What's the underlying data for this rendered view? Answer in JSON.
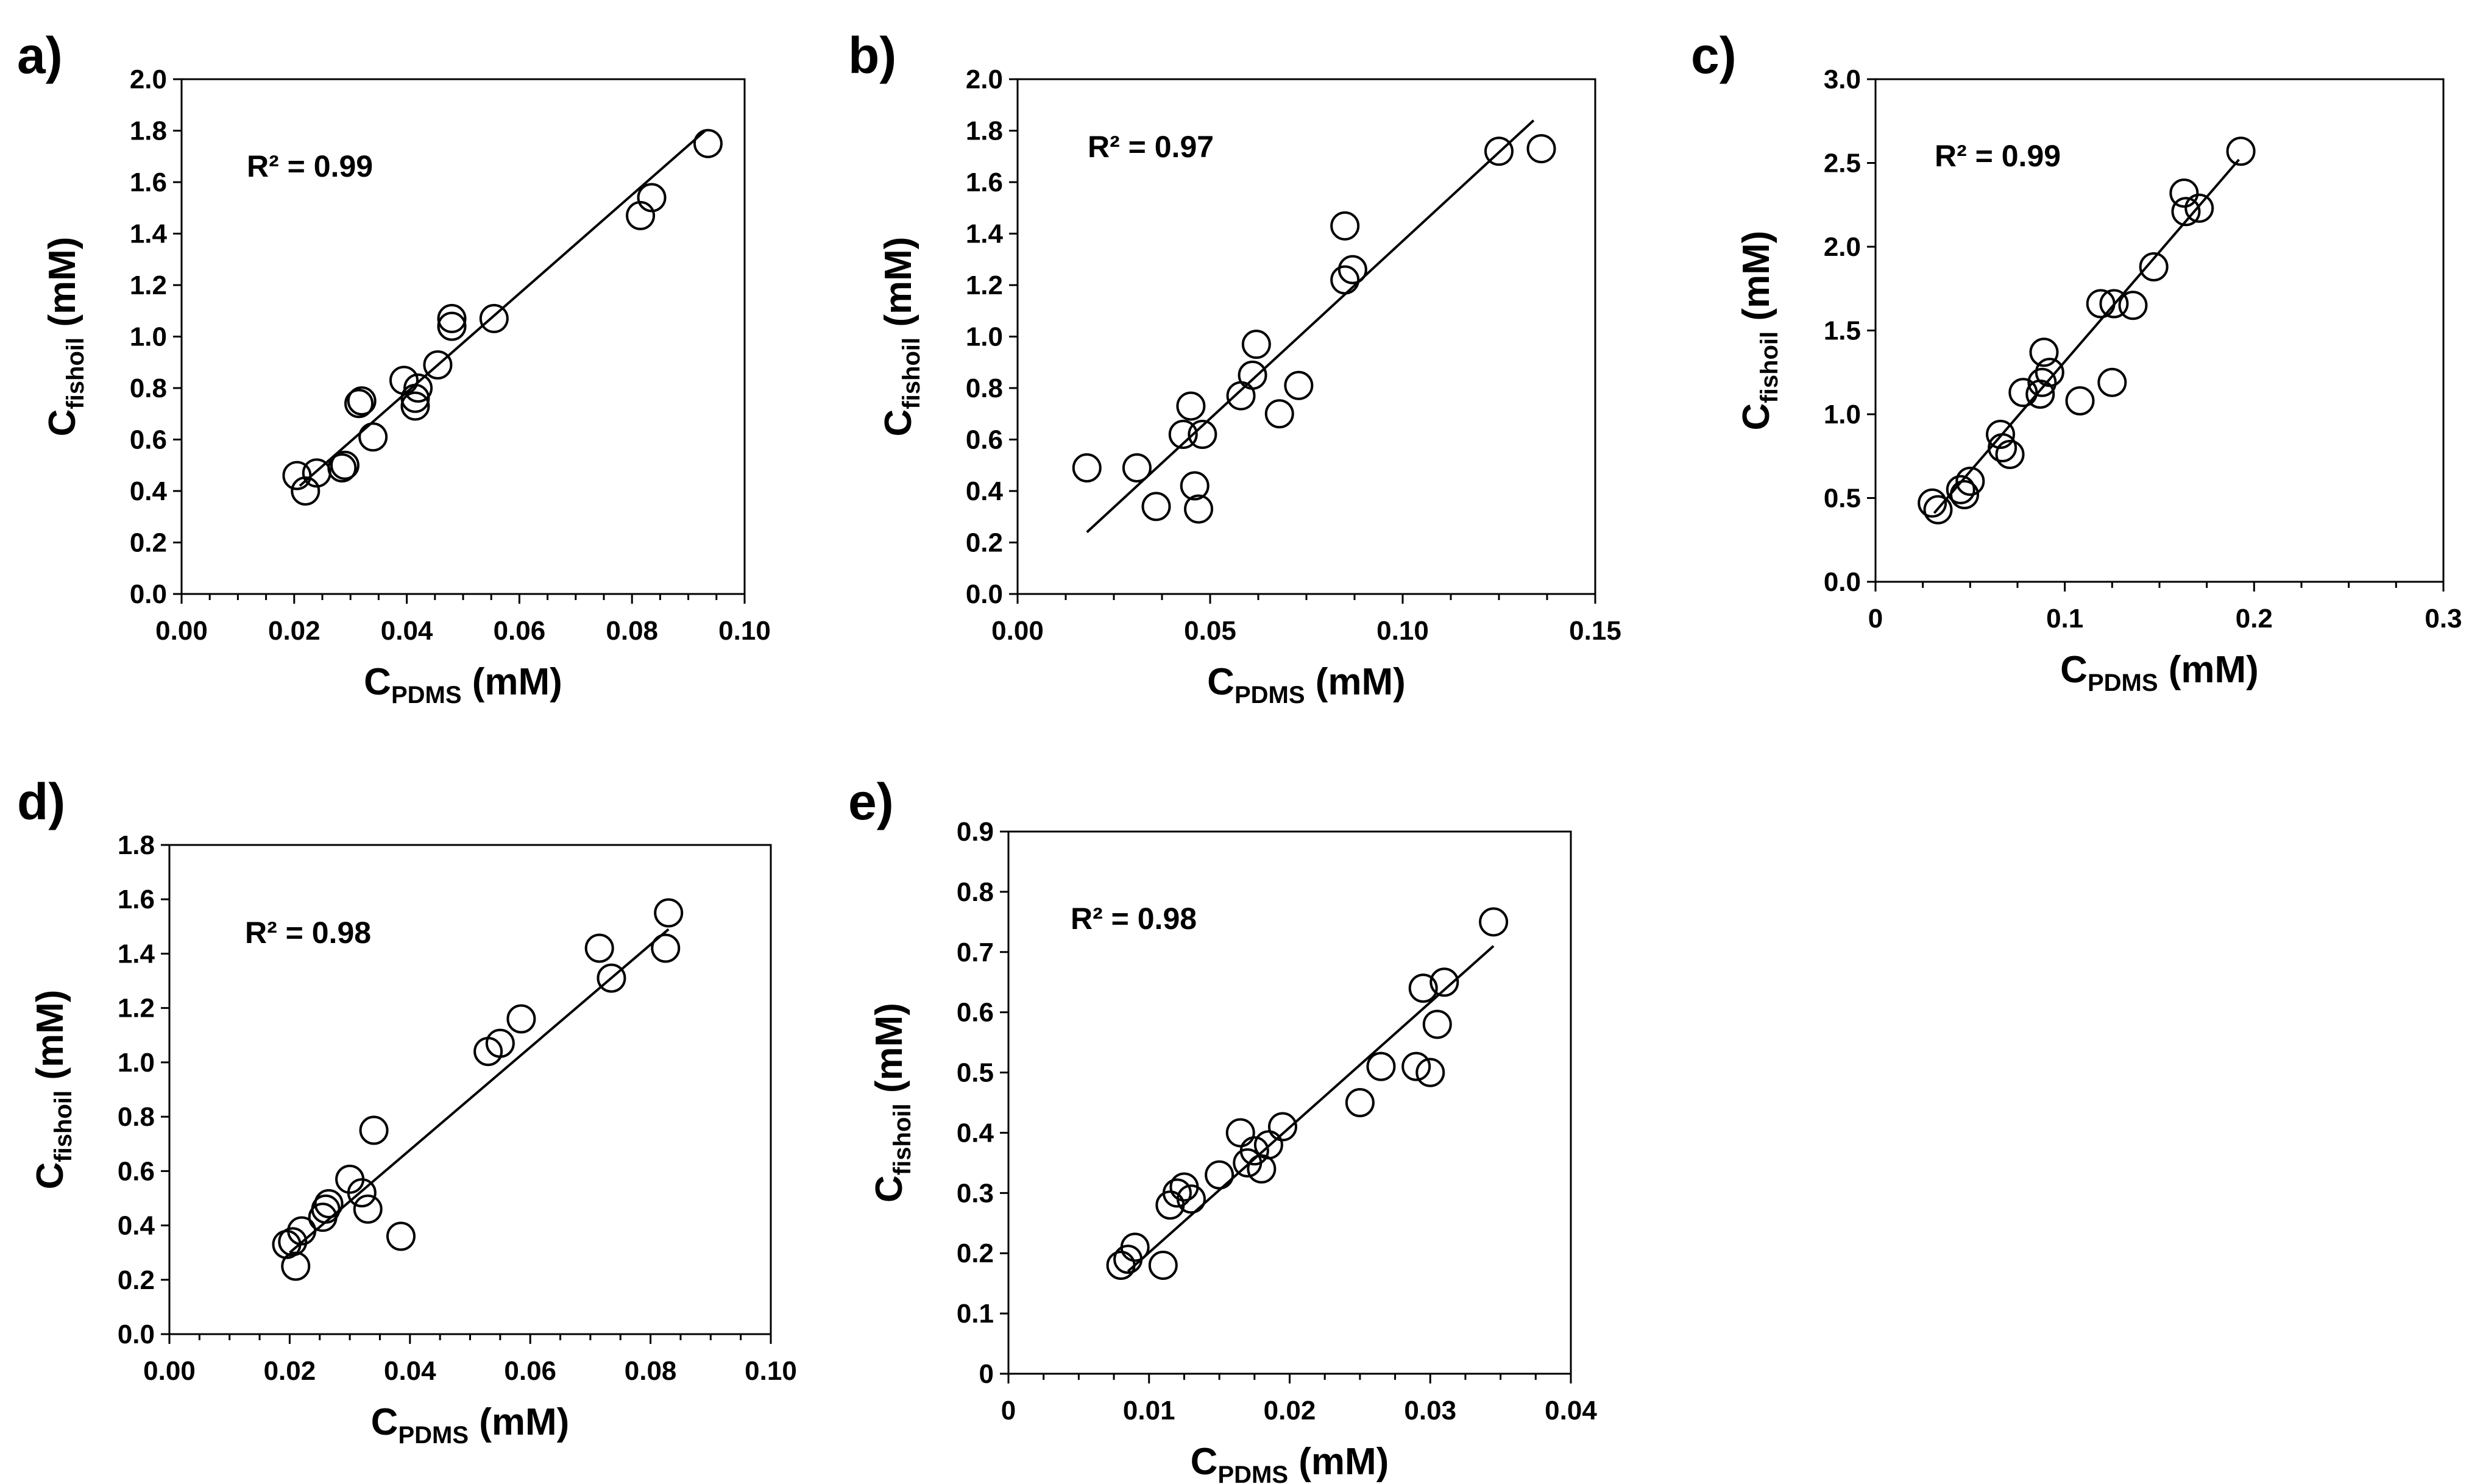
{
  "chart_data": [
    {
      "type": "scatter",
      "panel": "a)",
      "annotation": "R² = 0.99",
      "xlabel": "C",
      "xlabel_sub": "PDMS",
      "xlabel_unit": " (mM)",
      "ylabel": "C",
      "ylabel_sub": "fishoil",
      "ylabel_unit": " (mM)",
      "xlim": [
        0,
        0.1
      ],
      "ylim": [
        0,
        2.0
      ],
      "xticks": [
        0,
        0.02,
        0.04,
        0.06,
        0.08,
        0.1
      ],
      "xtick_labels": [
        "0.00",
        "0.02",
        "0.04",
        "0.06",
        "0.08",
        "0.10"
      ],
      "yticks": [
        0,
        0.2,
        0.4,
        0.6,
        0.8,
        1.0,
        1.2,
        1.4,
        1.6,
        1.8,
        2.0
      ],
      "ytick_labels": [
        "0.0",
        "0.2",
        "0.4",
        "0.6",
        "0.8",
        "1.0",
        "1.2",
        "1.4",
        "1.6",
        "1.8",
        "2.0"
      ],
      "fit": {
        "x": [
          0.021,
          0.093
        ],
        "y": [
          0.42,
          1.8
        ]
      },
      "points": [
        [
          0.0205,
          0.46
        ],
        [
          0.022,
          0.4
        ],
        [
          0.024,
          0.47
        ],
        [
          0.0285,
          0.49
        ],
        [
          0.029,
          0.5
        ],
        [
          0.0315,
          0.74
        ],
        [
          0.032,
          0.75
        ],
        [
          0.034,
          0.61
        ],
        [
          0.0395,
          0.83
        ],
        [
          0.0415,
          0.73
        ],
        [
          0.0415,
          0.76
        ],
        [
          0.042,
          0.8
        ],
        [
          0.0455,
          0.89
        ],
        [
          0.048,
          1.04
        ],
        [
          0.048,
          1.07
        ],
        [
          0.0555,
          1.07
        ],
        [
          0.0815,
          1.47
        ],
        [
          0.0835,
          1.54
        ],
        [
          0.0935,
          1.75
        ]
      ]
    },
    {
      "type": "scatter",
      "panel": "b)",
      "annotation": "R² = 0.97",
      "xlabel": "C",
      "xlabel_sub": "PDMS",
      "xlabel_unit": " (mM)",
      "ylabel": "C",
      "ylabel_sub": "fishoil",
      "ylabel_unit": " (mM)",
      "xlim": [
        0,
        0.15
      ],
      "ylim": [
        0,
        2.0
      ],
      "xticks": [
        0,
        0.05,
        0.1,
        0.15
      ],
      "xtick_labels": [
        "0.00",
        "0.05",
        "0.10",
        "0.15"
      ],
      "yticks": [
        0,
        0.2,
        0.4,
        0.6,
        0.8,
        1.0,
        1.2,
        1.4,
        1.6,
        1.8,
        2.0
      ],
      "ytick_labels": [
        "0.0",
        "0.2",
        "0.4",
        "0.6",
        "0.8",
        "1.0",
        "1.2",
        "1.4",
        "1.6",
        "1.8",
        "2.0"
      ],
      "fit": {
        "x": [
          0.018,
          0.134
        ],
        "y": [
          0.24,
          1.84
        ]
      },
      "points": [
        [
          0.018,
          0.49
        ],
        [
          0.031,
          0.49
        ],
        [
          0.036,
          0.34
        ],
        [
          0.043,
          0.62
        ],
        [
          0.045,
          0.73
        ],
        [
          0.046,
          0.42
        ],
        [
          0.047,
          0.33
        ],
        [
          0.048,
          0.62
        ],
        [
          0.058,
          0.77
        ],
        [
          0.061,
          0.85
        ],
        [
          0.062,
          0.97
        ],
        [
          0.068,
          0.7
        ],
        [
          0.073,
          0.81
        ],
        [
          0.085,
          1.43
        ],
        [
          0.085,
          1.22
        ],
        [
          0.087,
          1.26
        ],
        [
          0.125,
          1.72
        ],
        [
          0.136,
          1.73
        ]
      ]
    },
    {
      "type": "scatter",
      "panel": "c)",
      "annotation": "R² = 0.99",
      "xlabel": "C",
      "xlabel_sub": "PDMS",
      "xlabel_unit": " (mM)",
      "ylabel": "C",
      "ylabel_sub": "fishoil",
      "ylabel_unit": " (mM)",
      "xlim": [
        0,
        0.3
      ],
      "ylim": [
        0,
        3.0
      ],
      "xticks": [
        0,
        0.1,
        0.2,
        0.3
      ],
      "xtick_labels": [
        "0",
        "0.1",
        "0.2",
        "0.3"
      ],
      "yticks": [
        0,
        0.5,
        1.0,
        1.5,
        2.0,
        2.5,
        3.0
      ],
      "ytick_labels": [
        "0.0",
        "0.5",
        "1.0",
        "1.5",
        "2.0",
        "2.5",
        "3.0"
      ],
      "fit": {
        "x": [
          0.031,
          0.192
        ],
        "y": [
          0.41,
          2.52
        ]
      },
      "points": [
        [
          0.03,
          0.47
        ],
        [
          0.033,
          0.43
        ],
        [
          0.045,
          0.55
        ],
        [
          0.047,
          0.52
        ],
        [
          0.05,
          0.6
        ],
        [
          0.066,
          0.88
        ],
        [
          0.067,
          0.8
        ],
        [
          0.071,
          0.76
        ],
        [
          0.078,
          1.13
        ],
        [
          0.087,
          1.12
        ],
        [
          0.088,
          1.19
        ],
        [
          0.089,
          1.37
        ],
        [
          0.092,
          1.25
        ],
        [
          0.108,
          1.08
        ],
        [
          0.119,
          1.66
        ],
        [
          0.125,
          1.19
        ],
        [
          0.126,
          1.66
        ],
        [
          0.136,
          1.65
        ],
        [
          0.147,
          1.88
        ],
        [
          0.163,
          2.32
        ],
        [
          0.164,
          2.21
        ],
        [
          0.171,
          2.23
        ],
        [
          0.193,
          2.57
        ]
      ]
    },
    {
      "type": "scatter",
      "panel": "d)",
      "annotation": "R² = 0.98",
      "xlabel": "C",
      "xlabel_sub": "PDMS",
      "xlabel_unit": " (mM)",
      "ylabel": "C",
      "ylabel_sub": "fishoil",
      "ylabel_unit": " (mM)",
      "xlim": [
        0,
        0.1
      ],
      "ylim": [
        0,
        1.8
      ],
      "xticks": [
        0,
        0.02,
        0.04,
        0.06,
        0.08,
        0.1
      ],
      "xtick_labels": [
        "0.00",
        "0.02",
        "0.04",
        "0.06",
        "0.08",
        "0.10"
      ],
      "yticks": [
        0,
        0.2,
        0.4,
        0.6,
        0.8,
        1.0,
        1.2,
        1.4,
        1.6,
        1.8
      ],
      "ytick_labels": [
        "0.0",
        "0.2",
        "0.4",
        "0.6",
        "0.8",
        "1.0",
        "1.2",
        "1.4",
        "1.6",
        "1.8"
      ],
      "fit": {
        "x": [
          0.02,
          0.083
        ],
        "y": [
          0.3,
          1.49
        ]
      },
      "points": [
        [
          0.0195,
          0.33
        ],
        [
          0.0205,
          0.34
        ],
        [
          0.021,
          0.25
        ],
        [
          0.022,
          0.38
        ],
        [
          0.0255,
          0.43
        ],
        [
          0.026,
          0.46
        ],
        [
          0.0265,
          0.48
        ],
        [
          0.03,
          0.57
        ],
        [
          0.032,
          0.52
        ],
        [
          0.033,
          0.46
        ],
        [
          0.034,
          0.75
        ],
        [
          0.0385,
          0.36
        ],
        [
          0.053,
          1.04
        ],
        [
          0.055,
          1.07
        ],
        [
          0.0585,
          1.16
        ],
        [
          0.0715,
          1.42
        ],
        [
          0.0735,
          1.31
        ],
        [
          0.0825,
          1.42
        ],
        [
          0.083,
          1.55
        ]
      ]
    },
    {
      "type": "scatter",
      "panel": "e)",
      "annotation": "R² = 0.98",
      "xlabel": "C",
      "xlabel_sub": "PDMS",
      "xlabel_unit": " (mM)",
      "ylabel": "C",
      "ylabel_sub": "fishoil",
      "ylabel_unit": " (mM)",
      "xlim": [
        0,
        0.04
      ],
      "ylim": [
        0,
        0.9
      ],
      "xticks": [
        0,
        0.01,
        0.02,
        0.03,
        0.04
      ],
      "xtick_labels": [
        "0",
        "0.01",
        "0.02",
        "0.03",
        "0.04"
      ],
      "yticks": [
        0,
        0.1,
        0.2,
        0.3,
        0.4,
        0.5,
        0.6,
        0.7,
        0.8,
        0.9
      ],
      "ytick_labels": [
        "0",
        "0.1",
        "0.2",
        "0.3",
        "0.4",
        "0.5",
        "0.6",
        "0.7",
        "0.8",
        "0.9"
      ],
      "fit": {
        "x": [
          0.0085,
          0.0345
        ],
        "y": [
          0.17,
          0.71
        ]
      },
      "points": [
        [
          0.008,
          0.18
        ],
        [
          0.0085,
          0.19
        ],
        [
          0.009,
          0.21
        ],
        [
          0.011,
          0.18
        ],
        [
          0.0115,
          0.28
        ],
        [
          0.012,
          0.3
        ],
        [
          0.0125,
          0.31
        ],
        [
          0.013,
          0.29
        ],
        [
          0.015,
          0.33
        ],
        [
          0.0165,
          0.4
        ],
        [
          0.017,
          0.35
        ],
        [
          0.0175,
          0.37
        ],
        [
          0.018,
          0.34
        ],
        [
          0.0185,
          0.38
        ],
        [
          0.0195,
          0.41
        ],
        [
          0.025,
          0.45
        ],
        [
          0.0265,
          0.51
        ],
        [
          0.029,
          0.51
        ],
        [
          0.0295,
          0.64
        ],
        [
          0.03,
          0.5
        ],
        [
          0.0305,
          0.58
        ],
        [
          0.031,
          0.65
        ],
        [
          0.0345,
          0.75
        ]
      ]
    }
  ]
}
